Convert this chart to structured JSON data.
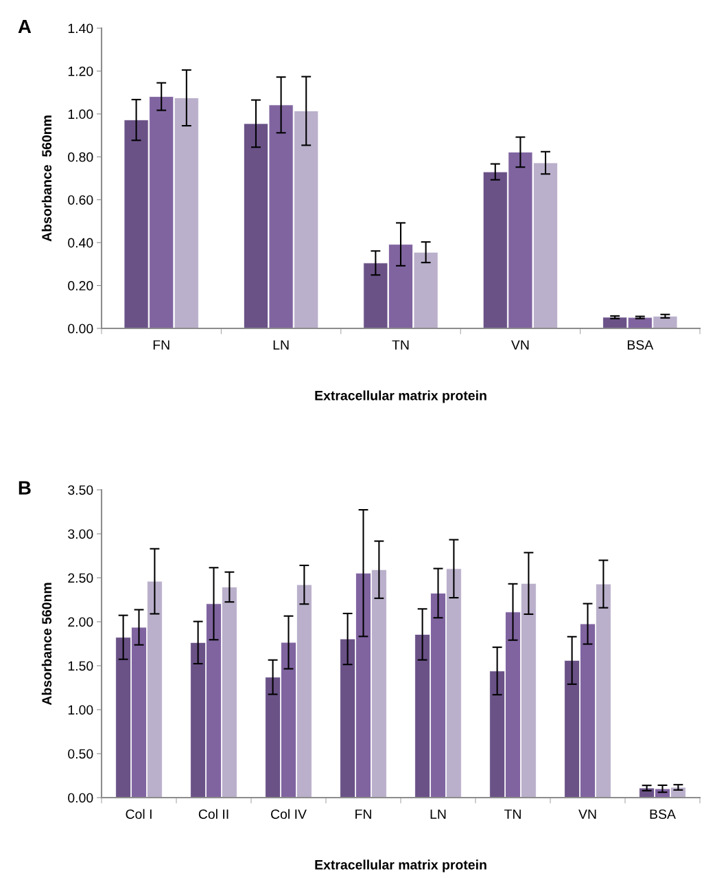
{
  "chart_data": [
    {
      "type": "bar",
      "title": "A",
      "xlabel": "Extracellular matrix protein",
      "ylabel": "Absorbance  560nm",
      "categories": [
        "FN",
        "LN",
        "TN",
        "VN",
        "BSA"
      ],
      "ylim": [
        0,
        1.4
      ],
      "yticks": [
        {
          "value": 0,
          "label": "0.00"
        },
        {
          "value": 0.2,
          "label": "0.20"
        },
        {
          "value": 0.4,
          "label": "0.40"
        },
        {
          "value": 0.6,
          "label": "0.60"
        },
        {
          "value": 0.8,
          "label": "0.80"
        },
        {
          "value": 1,
          "label": "1.00"
        },
        {
          "value": 1.2,
          "label": "1.20"
        },
        {
          "value": 1.4,
          "label": "1.40"
        }
      ],
      "grid": false,
      "series": [
        {
          "color": "#6a5287",
          "values": [
            0.972,
            0.955,
            0.305,
            0.73,
            0.052
          ],
          "errors": [
            0.095,
            0.11,
            0.056,
            0.037,
            0.006
          ]
        },
        {
          "color": "#8064a0",
          "values": [
            1.081,
            1.042,
            0.392,
            0.822,
            0.051
          ],
          "errors": [
            0.064,
            0.13,
            0.1,
            0.07,
            0.005
          ]
        },
        {
          "color": "#bab0cb",
          "values": [
            1.075,
            1.014,
            0.355,
            0.772,
            0.057
          ],
          "errors": [
            0.13,
            0.16,
            0.048,
            0.052,
            0.008
          ]
        }
      ]
    },
    {
      "type": "bar",
      "title": "B",
      "xlabel": "Extracellular matrix protein",
      "ylabel": "Absorbance 560nm",
      "categories": [
        "Col I",
        "Col II",
        "Col IV",
        "FN",
        "LN",
        "TN",
        "VN",
        "BSA"
      ],
      "ylim": [
        0,
        3.5
      ],
      "yticks": [
        {
          "value": 0,
          "label": "0.00"
        },
        {
          "value": 0.5,
          "label": "0.50"
        },
        {
          "value": 1,
          "label": "1.00"
        },
        {
          "value": 1.5,
          "label": "1.50"
        },
        {
          "value": 2,
          "label": "2.00"
        },
        {
          "value": 2.5,
          "label": "2.50"
        },
        {
          "value": 3,
          "label": "3.00"
        },
        {
          "value": 3.5,
          "label": "3.50"
        }
      ],
      "grid": false,
      "series": [
        {
          "color": "#6a5287",
          "values": [
            1.823,
            1.763,
            1.37,
            1.804,
            1.856,
            1.44,
            1.56,
            0.109
          ],
          "errors": [
            0.25,
            0.24,
            0.195,
            0.29,
            0.29,
            0.27,
            0.27,
            0.03
          ]
        },
        {
          "color": "#8064a0",
          "values": [
            1.937,
            2.205,
            1.765,
            2.553,
            2.325,
            2.111,
            1.976,
            0.101
          ],
          "errors": [
            0.2,
            0.41,
            0.3,
            0.72,
            0.28,
            0.32,
            0.23,
            0.04
          ]
        },
        {
          "color": "#bab0cb",
          "values": [
            2.46,
            2.395,
            2.421,
            2.592,
            2.603,
            2.436,
            2.429,
            0.117
          ],
          "errors": [
            0.37,
            0.17,
            0.22,
            0.325,
            0.33,
            0.35,
            0.27,
            0.03
          ]
        }
      ]
    }
  ]
}
